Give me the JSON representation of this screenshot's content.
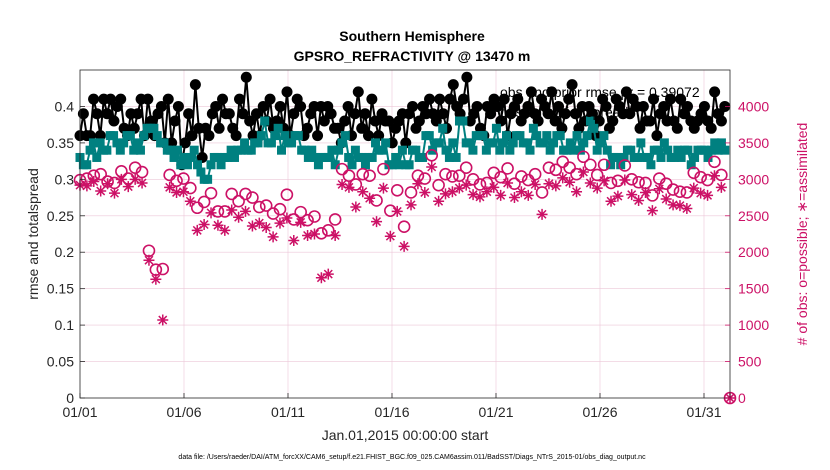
{
  "chart_data": {
    "type": "line",
    "title": "Southern Hemisphere",
    "subtitle": "GPSRO_REFRACTIVITY @ 13470 m",
    "xlabel": "Jan.01,2015 00:00:00 start",
    "ylabel": "rmse and totalspread",
    "ylabel_right": "# of obs: o=possible; ∗=assimilated",
    "x_tick_labels": [
      "01/01",
      "01/06",
      "01/11",
      "01/16",
      "01/21",
      "01/26",
      "01/31"
    ],
    "x_tick_days": [
      0,
      5,
      10,
      15,
      20,
      25,
      30
    ],
    "xlim": [
      0,
      31.25
    ],
    "ylim": [
      0,
      0.45
    ],
    "y_ticks": [
      "0",
      "0.05",
      "0.1",
      "0.15",
      "0.2",
      "0.25",
      "0.3",
      "0.35",
      "0.4"
    ],
    "ylim_right": [
      0,
      4500
    ],
    "y_ticks_right": [
      "0",
      "500",
      "1000",
      "1500",
      "2000",
      "2500",
      "3000",
      "3500",
      "4000"
    ],
    "grid": true,
    "legend_position": "top-right",
    "footer": "data file: /Users/raeder/DAI/ATM_forcXX/CAM6_setup/f.e21.FHIST_BGC.f09_025.CAM6assim.011/BadSST/Diags_NTrS_2015-01/obs_diag_output.nc",
    "series": [
      {
        "name": "obs and prior rmse",
        "legend_visible_text": "obs and prior rmse pr = 0.39072",
        "color": "#000000",
        "marker": "circle",
        "axis": "left",
        "values": [
          0.36,
          0.39,
          0.36,
          0.36,
          0.41,
          0.39,
          0.36,
          0.41,
          0.39,
          0.41,
          0.38,
          0.4,
          0.41,
          0.37,
          0.36,
          0.39,
          0.37,
          0.39,
          0.41,
          0.36,
          0.41,
          0.38,
          0.36,
          0.39,
          0.4,
          0.35,
          0.41,
          0.35,
          0.38,
          0.4,
          0.32,
          0.35,
          0.39,
          0.36,
          0.43,
          0.37,
          0.33,
          0.37,
          0.36,
          0.39,
          0.4,
          0.37,
          0.41,
          0.39,
          0.39,
          0.37,
          0.36,
          0.41,
          0.39,
          0.44,
          0.38,
          0.36,
          0.39,
          0.36,
          0.4,
          0.38,
          0.41,
          0.37,
          0.38,
          0.4,
          0.37,
          0.42,
          0.36,
          0.39,
          0.41,
          0.4,
          0.36,
          0.37,
          0.39,
          0.4,
          0.36,
          0.4,
          0.38,
          0.4,
          0.39,
          0.37,
          0.37,
          0.35,
          0.38,
          0.4,
          0.36,
          0.39,
          0.42,
          0.37,
          0.39,
          0.36,
          0.41,
          0.38,
          0.36,
          0.39,
          0.38,
          0.38,
          0.35,
          0.37,
          0.38,
          0.39,
          0.35,
          0.39,
          0.4,
          0.37,
          0.38,
          0.4,
          0.39,
          0.41,
          0.39,
          0.38,
          0.41,
          0.39,
          0.37,
          0.41,
          0.43,
          0.4,
          0.39,
          0.41,
          0.44,
          0.38,
          0.39,
          0.4,
          0.37,
          0.36,
          0.4,
          0.39,
          0.41,
          0.4,
          0.38,
          0.41,
          0.36,
          0.39,
          0.4,
          0.41,
          0.38,
          0.39,
          0.4,
          0.42,
          0.39,
          0.38,
          0.41,
          0.4,
          0.39,
          0.42,
          0.38,
          0.4,
          0.37,
          0.39,
          0.41,
          0.43,
          0.39,
          0.37,
          0.4,
          0.38,
          0.4,
          0.39,
          0.36,
          0.38,
          0.41,
          0.4,
          0.37,
          0.38,
          0.41,
          0.4,
          0.39,
          0.42,
          0.39,
          0.41,
          0.4,
          0.37,
          0.4,
          0.38,
          0.38,
          0.41,
          0.36,
          0.39,
          0.4,
          0.38,
          0.41,
          0.38,
          0.37,
          0.41,
          0.39,
          0.4,
          0.38,
          0.37,
          0.38,
          0.39,
          0.4,
          0.38,
          0.37,
          0.42,
          0.39,
          0.38,
          0.4
        ]
      },
      {
        "name": "obs and prior spread",
        "legend_visible_text": "obs and prior spread",
        "color": "#008080",
        "marker": "square",
        "axis": "left",
        "values": [
          0.33,
          0.32,
          0.32,
          0.34,
          0.35,
          0.33,
          0.35,
          0.34,
          0.34,
          0.36,
          0.36,
          0.35,
          0.34,
          0.35,
          0.36,
          0.36,
          0.34,
          0.35,
          0.34,
          0.36,
          0.37,
          0.37,
          0.37,
          0.36,
          0.35,
          0.35,
          0.34,
          0.34,
          0.33,
          0.34,
          0.32,
          0.33,
          0.32,
          0.33,
          0.34,
          0.32,
          0.31,
          0.3,
          0.3,
          0.32,
          0.33,
          0.33,
          0.32,
          0.33,
          0.33,
          0.34,
          0.33,
          0.34,
          0.34,
          0.35,
          0.34,
          0.34,
          0.35,
          0.35,
          0.36,
          0.38,
          0.35,
          0.35,
          0.36,
          0.37,
          0.34,
          0.36,
          0.35,
          0.35,
          0.36,
          0.36,
          0.34,
          0.34,
          0.33,
          0.34,
          0.33,
          0.32,
          0.33,
          0.33,
          0.33,
          0.34,
          0.32,
          0.34,
          0.35,
          0.36,
          0.33,
          0.32,
          0.34,
          0.33,
          0.33,
          0.32,
          0.33,
          0.33,
          0.35,
          0.34,
          0.34,
          0.35,
          0.32,
          0.32,
          0.33,
          0.32,
          0.34,
          0.32,
          0.32,
          0.34,
          0.34,
          0.33,
          0.33,
          0.36,
          0.36,
          0.34,
          0.35,
          0.35,
          0.37,
          0.34,
          0.33,
          0.35,
          0.33,
          0.38,
          0.38,
          0.35,
          0.35,
          0.34,
          0.36,
          0.36,
          0.36,
          0.34,
          0.35,
          0.35,
          0.37,
          0.34,
          0.35,
          0.36,
          0.34,
          0.35,
          0.36,
          0.36,
          0.35,
          0.35,
          0.34,
          0.37,
          0.36,
          0.35,
          0.35,
          0.36,
          0.34,
          0.35,
          0.36,
          0.36,
          0.34,
          0.34,
          0.35,
          0.34,
          0.36,
          0.34,
          0.35,
          0.36,
          0.38,
          0.37,
          0.34,
          0.35,
          0.36,
          0.34,
          0.32,
          0.33,
          0.33,
          0.32,
          0.33,
          0.34,
          0.34,
          0.33,
          0.33,
          0.35,
          0.33,
          0.33,
          0.32,
          0.34,
          0.34,
          0.33,
          0.35,
          0.34,
          0.33,
          0.33,
          0.34,
          0.33,
          0.34,
          0.34,
          0.32,
          0.33,
          0.34,
          0.34,
          0.34,
          0.33,
          0.34,
          0.35,
          0.34,
          0.35,
          0.34
        ]
      },
      {
        "name": "# obs possible",
        "color": "#cc1166",
        "marker": "open-circle",
        "axis": "right",
        "values": [
          2990,
          3050,
          3010,
          3120,
          3050,
          2910,
          3070,
          3020,
          2970,
          3140,
          2950,
          3060,
          3110,
          2920,
          3010,
          3030,
          3160,
          2930,
          3100,
          3050,
          2020,
          1740,
          1760,
          1680,
          1770,
          3000,
          3060,
          3110,
          2980,
          3160,
          3010,
          2950,
          2880,
          2700,
          2610,
          2830,
          2690,
          2900,
          2810,
          2670,
          2560,
          2550,
          2560,
          2690,
          2800,
          2570,
          2700,
          2600,
          2800,
          2980,
          2750,
          2930,
          2620,
          2690,
          2640,
          2920,
          2530,
          2720,
          2590,
          2420,
          2790,
          2580,
          2450,
          2590,
          2550,
          2330,
          2440,
          2600,
          2490,
          2360,
          2260,
          2410,
          2300,
          2710,
          2450,
          2940,
          3140,
          3020,
          3050,
          2920,
          2930,
          3010,
          3070,
          2690,
          3050,
          3000,
          2710,
          2880,
          3140,
          2640,
          2570,
          2610,
          2850,
          2760,
          2350,
          2160,
          2820,
          3040,
          3050,
          3030,
          3010,
          3000,
          3330,
          3130,
          2920,
          3000,
          3070,
          2920,
          3040,
          2960,
          3050,
          2730,
          3160,
          3040,
          3000,
          3200,
          2930,
          3040,
          2950,
          2980,
          3090,
          2800,
          3030,
          3140,
          3150,
          3060,
          2940,
          3250,
          3040,
          3010,
          2990,
          3080,
          3070,
          3000,
          2820,
          3040,
          3160,
          3110,
          3130,
          3200,
          3240,
          3270,
          3160,
          3110,
          3070,
          3050,
          3310,
          3120,
          3200,
          3170,
          3060,
          3120,
          3200,
          3050,
          2950,
          2870,
          2980,
          3070,
          3190,
          3040,
          3000,
          2870,
          2960,
          2840,
          2950,
          3050,
          2780,
          3150,
          3010,
          2950,
          2940,
          3060,
          2860,
          2890,
          2830,
          2870,
          2820,
          3160,
          3090,
          3180,
          3030,
          3000,
          2990,
          3170,
          3240,
          3300,
          3060,
          3110
        ]
      },
      {
        "name": "# obs assimilated",
        "color": "#cc1166",
        "marker": "asterisk",
        "axis": "right",
        "values": [
          2920,
          2930,
          2910,
          2950,
          2970,
          2800,
          2840,
          2880,
          2940,
          2850,
          2810,
          2950,
          3000,
          2850,
          2900,
          2900,
          3000,
          2810,
          2950,
          2920,
          1890,
          1580,
          1630,
          1650,
          1070,
          2680,
          2890,
          2960,
          2820,
          2990,
          2830,
          2850,
          2700,
          2560,
          2300,
          2640,
          2380,
          2740,
          2540,
          2320,
          2370,
          2260,
          2300,
          2340,
          2580,
          2380,
          2480,
          2340,
          2560,
          2700,
          2360,
          2780,
          2400,
          2520,
          2340,
          2760,
          2210,
          2500,
          2400,
          2100,
          2470,
          2300,
          2160,
          2330,
          2410,
          2100,
          2230,
          2430,
          2250,
          1960,
          1650,
          1840,
          1700,
          2480,
          2230,
          2730,
          2930,
          2810,
          2890,
          2580,
          2620,
          2770,
          2830,
          2440,
          2740,
          2670,
          2420,
          2600,
          2880,
          2370,
          2220,
          2350,
          2560,
          2480,
          2080,
          2050,
          2650,
          2840,
          2940,
          2880,
          2820,
          2840,
          3170,
          2970,
          2700,
          2770,
          2800,
          2690,
          2830,
          2740,
          2880,
          2450,
          2920,
          2840,
          2790,
          2990,
          2760,
          2800,
          2830,
          2750,
          2890,
          2520,
          2780,
          2880,
          2950,
          2910,
          2750,
          3060,
          2830,
          2860,
          2780,
          2880,
          2930,
          2870,
          2520,
          2860,
          2940,
          2960,
          2910,
          2970,
          3020,
          3070,
          2960,
          2900,
          2830,
          2890,
          3100,
          2910,
          2950,
          3000,
          2880,
          2940,
          2980,
          2800,
          2700,
          2640,
          2770,
          2880,
          2990,
          2830,
          2790,
          2630,
          2710,
          2660,
          2820,
          2880,
          2570,
          2970,
          2870,
          2790,
          2730,
          2870,
          2650,
          2700,
          2640,
          2670,
          2600,
          2980,
          2880,
          2960,
          2810,
          2810,
          2780,
          2990,
          3050,
          3100,
          2890,
          2880
        ]
      }
    ],
    "extra_points": [
      {
        "series": "# obs possible",
        "x_day": 31.25,
        "value": 0
      },
      {
        "series": "# obs assimilated",
        "x_day": 31.25,
        "value": 0
      }
    ]
  }
}
